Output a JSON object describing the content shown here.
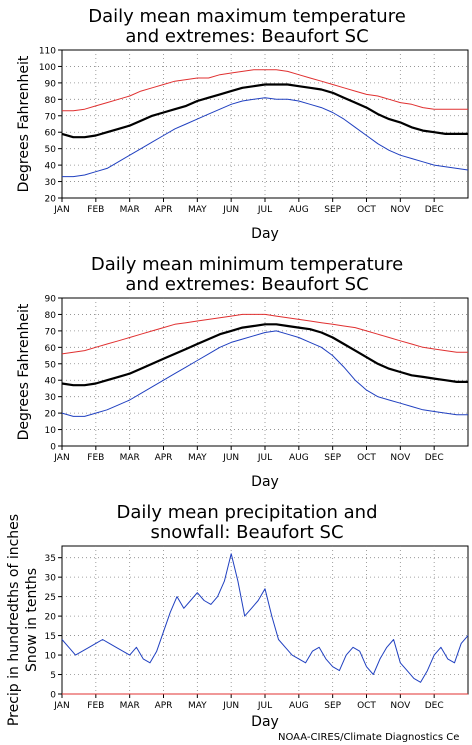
{
  "credit": "NOAA-CIRES/Climate Diagnostics Ce",
  "chart_data": [
    {
      "type": "line",
      "title": "Daily mean maximum temperature",
      "subtitle": "and extremes: Beaufort SC",
      "xlabel": "Day",
      "ylabel": "Degrees Fahrenheit",
      "ylim": [
        20,
        110
      ],
      "yticks": [
        20,
        30,
        40,
        50,
        60,
        70,
        80,
        90,
        100,
        110
      ],
      "months": [
        "JAN",
        "FEB",
        "MAR",
        "APR",
        "MAY",
        "JUN",
        "JUL",
        "AUG",
        "SEP",
        "OCT",
        "NOV",
        "DEC"
      ],
      "grid": true,
      "series": [
        {
          "color": "#e03030",
          "values": [
            73,
            73,
            74,
            76,
            78,
            80,
            82,
            85,
            87,
            89,
            91,
            92,
            93,
            93,
            95,
            96,
            97,
            98,
            98,
            98,
            97,
            95,
            93,
            91,
            89,
            87,
            85,
            83,
            82,
            80,
            78,
            77,
            75,
            74,
            74,
            74,
            74
          ]
        },
        {
          "color": "#000000",
          "values": [
            59,
            57,
            57,
            58,
            60,
            62,
            64,
            67,
            70,
            72,
            74,
            76,
            79,
            81,
            83,
            85,
            87,
            88,
            89,
            89,
            89,
            88,
            87,
            86,
            84,
            81,
            78,
            75,
            71,
            68,
            66,
            63,
            61,
            60,
            59,
            59,
            59
          ]
        },
        {
          "color": "#2040c0",
          "values": [
            33,
            33,
            34,
            36,
            38,
            42,
            46,
            50,
            54,
            58,
            62,
            65,
            68,
            71,
            74,
            77,
            79,
            80,
            81,
            80,
            80,
            79,
            77,
            75,
            72,
            68,
            63,
            58,
            53,
            49,
            46,
            44,
            42,
            40,
            39,
            38,
            37
          ]
        }
      ]
    },
    {
      "type": "line",
      "title": "Daily mean minimum temperature",
      "subtitle": "and extremes: Beaufort SC",
      "xlabel": "Day",
      "ylabel": "Degrees Fahrenheit",
      "ylim": [
        0,
        90
      ],
      "yticks": [
        0,
        10,
        20,
        30,
        40,
        50,
        60,
        70,
        80,
        90
      ],
      "months": [
        "JAN",
        "FEB",
        "MAR",
        "APR",
        "MAY",
        "JUN",
        "JUL",
        "AUG",
        "SEP",
        "OCT",
        "NOV",
        "DEC"
      ],
      "grid": true,
      "series": [
        {
          "color": "#e03030",
          "values": [
            56,
            57,
            58,
            60,
            62,
            64,
            66,
            68,
            70,
            72,
            74,
            75,
            76,
            77,
            78,
            79,
            80,
            80,
            80,
            79,
            78,
            77,
            76,
            75,
            74,
            73,
            72,
            70,
            68,
            66,
            64,
            62,
            60,
            59,
            58,
            57,
            57
          ]
        },
        {
          "color": "#000000",
          "values": [
            38,
            37,
            37,
            38,
            40,
            42,
            44,
            47,
            50,
            53,
            56,
            59,
            62,
            65,
            68,
            70,
            72,
            73,
            74,
            74,
            73,
            72,
            71,
            69,
            66,
            62,
            58,
            54,
            50,
            47,
            45,
            43,
            42,
            41,
            40,
            39,
            39
          ]
        },
        {
          "color": "#2040c0",
          "values": [
            20,
            18,
            18,
            20,
            22,
            25,
            28,
            32,
            36,
            40,
            44,
            48,
            52,
            56,
            60,
            63,
            65,
            67,
            69,
            70,
            68,
            66,
            63,
            60,
            55,
            48,
            40,
            34,
            30,
            28,
            26,
            24,
            22,
            21,
            20,
            19,
            19
          ]
        }
      ]
    },
    {
      "type": "line",
      "title": "Daily mean precipitation and",
      "subtitle": "snowfall: Beaufort SC",
      "xlabel": "Day",
      "ylabel": "Precip in hundredths of inches",
      "ylabel2": "Snow in tenths",
      "ylim": [
        0,
        38
      ],
      "yticks": [
        0,
        5,
        10,
        15,
        20,
        25,
        30,
        35
      ],
      "months": [
        "JAN",
        "FEB",
        "MAR",
        "APR",
        "MAY",
        "JUN",
        "JUL",
        "AUG",
        "SEP",
        "OCT",
        "NOV",
        "DEC"
      ],
      "grid": true,
      "series": [
        {
          "color": "#2040c0",
          "values": [
            14,
            12,
            10,
            11,
            12,
            13,
            14,
            13,
            12,
            11,
            10,
            12,
            9,
            8,
            11,
            16,
            21,
            25,
            22,
            24,
            26,
            24,
            23,
            25,
            29,
            36,
            29,
            20,
            22,
            24,
            27,
            20,
            14,
            12,
            10,
            9,
            8,
            11,
            12,
            9,
            7,
            6,
            10,
            12,
            11,
            7,
            5,
            9,
            12,
            14,
            8,
            6,
            4,
            3,
            6,
            10,
            12,
            9,
            8,
            13,
            15
          ]
        },
        {
          "color": "#e03030",
          "values": [
            0,
            0,
            0,
            0,
            0,
            0,
            0,
            0,
            0,
            0,
            0,
            0
          ]
        }
      ]
    }
  ]
}
